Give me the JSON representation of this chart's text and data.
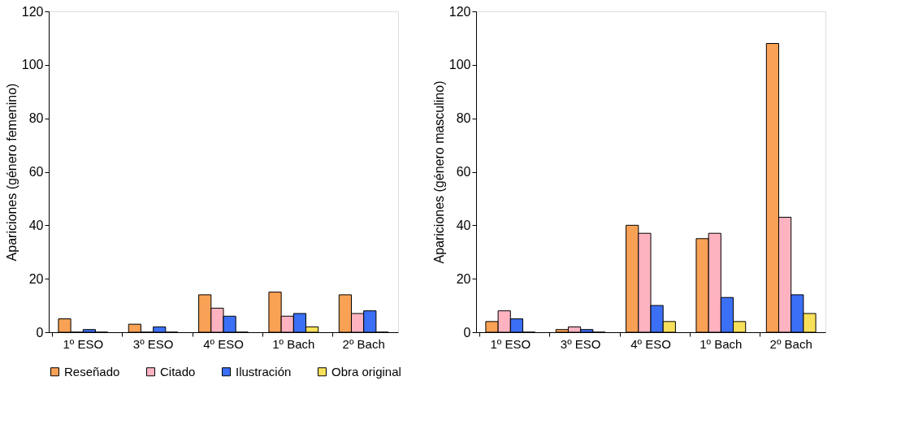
{
  "chart_data": [
    {
      "type": "bar",
      "ylabel": "Apariciones (género femenino)",
      "categories": [
        "1º ESO",
        "3º ESO",
        "4º ESO",
        "1º Bach",
        "2º Bach"
      ],
      "ylim": [
        0,
        120
      ],
      "yticks": [
        0,
        20,
        40,
        60,
        80,
        100,
        120
      ],
      "grid": false,
      "legend": "bottom",
      "series": [
        {
          "name": "Reseñado",
          "color": "#f9a155",
          "values": [
            5,
            3,
            14,
            15,
            14
          ]
        },
        {
          "name": "Citado",
          "color": "#ffb3c1",
          "values": [
            0,
            0,
            9,
            6,
            7
          ]
        },
        {
          "name": "Ilustración",
          "color": "#3b6ff5",
          "values": [
            1,
            2,
            6,
            7,
            8
          ]
        },
        {
          "name": "Obra original",
          "color": "#f9e05a",
          "values": [
            0,
            0,
            0,
            2,
            0
          ]
        }
      ]
    },
    {
      "type": "bar",
      "ylabel": "Apariciones (género masculino)",
      "categories": [
        "1º ESO",
        "3º ESO",
        "4º ESO",
        "1º Bach",
        "2º Bach"
      ],
      "ylim": [
        0,
        120
      ],
      "yticks": [
        0,
        20,
        40,
        60,
        80,
        100,
        120
      ],
      "grid": false,
      "legend": "bottom",
      "series": [
        {
          "name": "Reseñado",
          "color": "#f9a155",
          "values": [
            4,
            1,
            40,
            35,
            108
          ]
        },
        {
          "name": "Citado",
          "color": "#ffb3c1",
          "values": [
            8,
            2,
            37,
            37,
            43
          ]
        },
        {
          "name": "Ilustración",
          "color": "#3b6ff5",
          "values": [
            5,
            1,
            10,
            13,
            14
          ]
        },
        {
          "name": "Obra original",
          "color": "#f9e05a",
          "values": [
            0,
            0,
            4,
            4,
            7
          ]
        }
      ]
    }
  ]
}
